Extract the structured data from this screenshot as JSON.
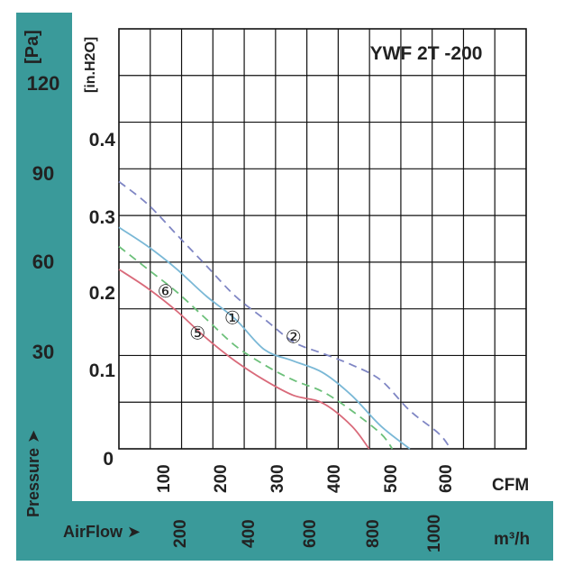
{
  "chart_data": {
    "type": "line",
    "title": "YWF 2T -200",
    "pressure_axis": {
      "label": "Pressure",
      "arrow": "➤",
      "unit_pa": "[Pa]",
      "unit_in": "[in.H2O]",
      "ticks_pa": [
        "120",
        "90",
        "60",
        "30"
      ],
      "ticks_in": [
        "0.4",
        "0.3",
        "0.2",
        "0.1",
        "0"
      ]
    },
    "airflow_axis": {
      "label": "AirFlow",
      "arrow": "➤",
      "unit_cfm": "CFM",
      "unit_m3h": "m³/h",
      "ticks_cfm": [
        "100",
        "200",
        "300",
        "400",
        "500",
        "600"
      ],
      "ticks_m3h": [
        "200",
        "400",
        "600",
        "800",
        "1000"
      ]
    },
    "xlim_cfm": [
      0,
      700
    ],
    "ylim_inh2o": [
      0,
      0.55
    ],
    "grid": true,
    "series": [
      {
        "name": "①",
        "color": "#7ab8d6",
        "dash": "solid",
        "points": [
          [
            0,
            0.29
          ],
          [
            50,
            0.265
          ],
          [
            100,
            0.235
          ],
          [
            150,
            0.2
          ],
          [
            200,
            0.17
          ],
          [
            250,
            0.13
          ],
          [
            300,
            0.115
          ],
          [
            350,
            0.1
          ],
          [
            400,
            0.07
          ],
          [
            450,
            0.03
          ],
          [
            500,
            0
          ]
        ]
      },
      {
        "name": "②",
        "color": "#7f86c4",
        "dash": "dashed",
        "points": [
          [
            0,
            0.35
          ],
          [
            50,
            0.32
          ],
          [
            100,
            0.28
          ],
          [
            150,
            0.24
          ],
          [
            200,
            0.2
          ],
          [
            250,
            0.17
          ],
          [
            300,
            0.14
          ],
          [
            350,
            0.125
          ],
          [
            400,
            0.11
          ],
          [
            450,
            0.09
          ],
          [
            500,
            0.05
          ],
          [
            550,
            0.02
          ],
          [
            570,
            0
          ]
        ]
      },
      {
        "name": "⑤",
        "color": "#d96a7a",
        "dash": "solid",
        "points": [
          [
            0,
            0.235
          ],
          [
            50,
            0.21
          ],
          [
            100,
            0.18
          ],
          [
            150,
            0.145
          ],
          [
            200,
            0.115
          ],
          [
            250,
            0.09
          ],
          [
            300,
            0.07
          ],
          [
            350,
            0.06
          ],
          [
            400,
            0.03
          ],
          [
            430,
            0
          ]
        ]
      },
      {
        "name": "⑥",
        "color": "#6cc07a",
        "dash": "dashed",
        "points": [
          [
            0,
            0.265
          ],
          [
            50,
            0.235
          ],
          [
            100,
            0.205
          ],
          [
            150,
            0.17
          ],
          [
            200,
            0.135
          ],
          [
            250,
            0.11
          ],
          [
            300,
            0.09
          ],
          [
            350,
            0.075
          ],
          [
            400,
            0.05
          ],
          [
            450,
            0.02
          ],
          [
            470,
            0
          ]
        ]
      }
    ],
    "annotations": [
      {
        "text": "⑥",
        "x": 80,
        "y": 0.205
      },
      {
        "text": "⑤",
        "x": 135,
        "y": 0.15
      },
      {
        "text": "①",
        "x": 195,
        "y": 0.17
      },
      {
        "text": "②",
        "x": 300,
        "y": 0.145
      }
    ]
  }
}
